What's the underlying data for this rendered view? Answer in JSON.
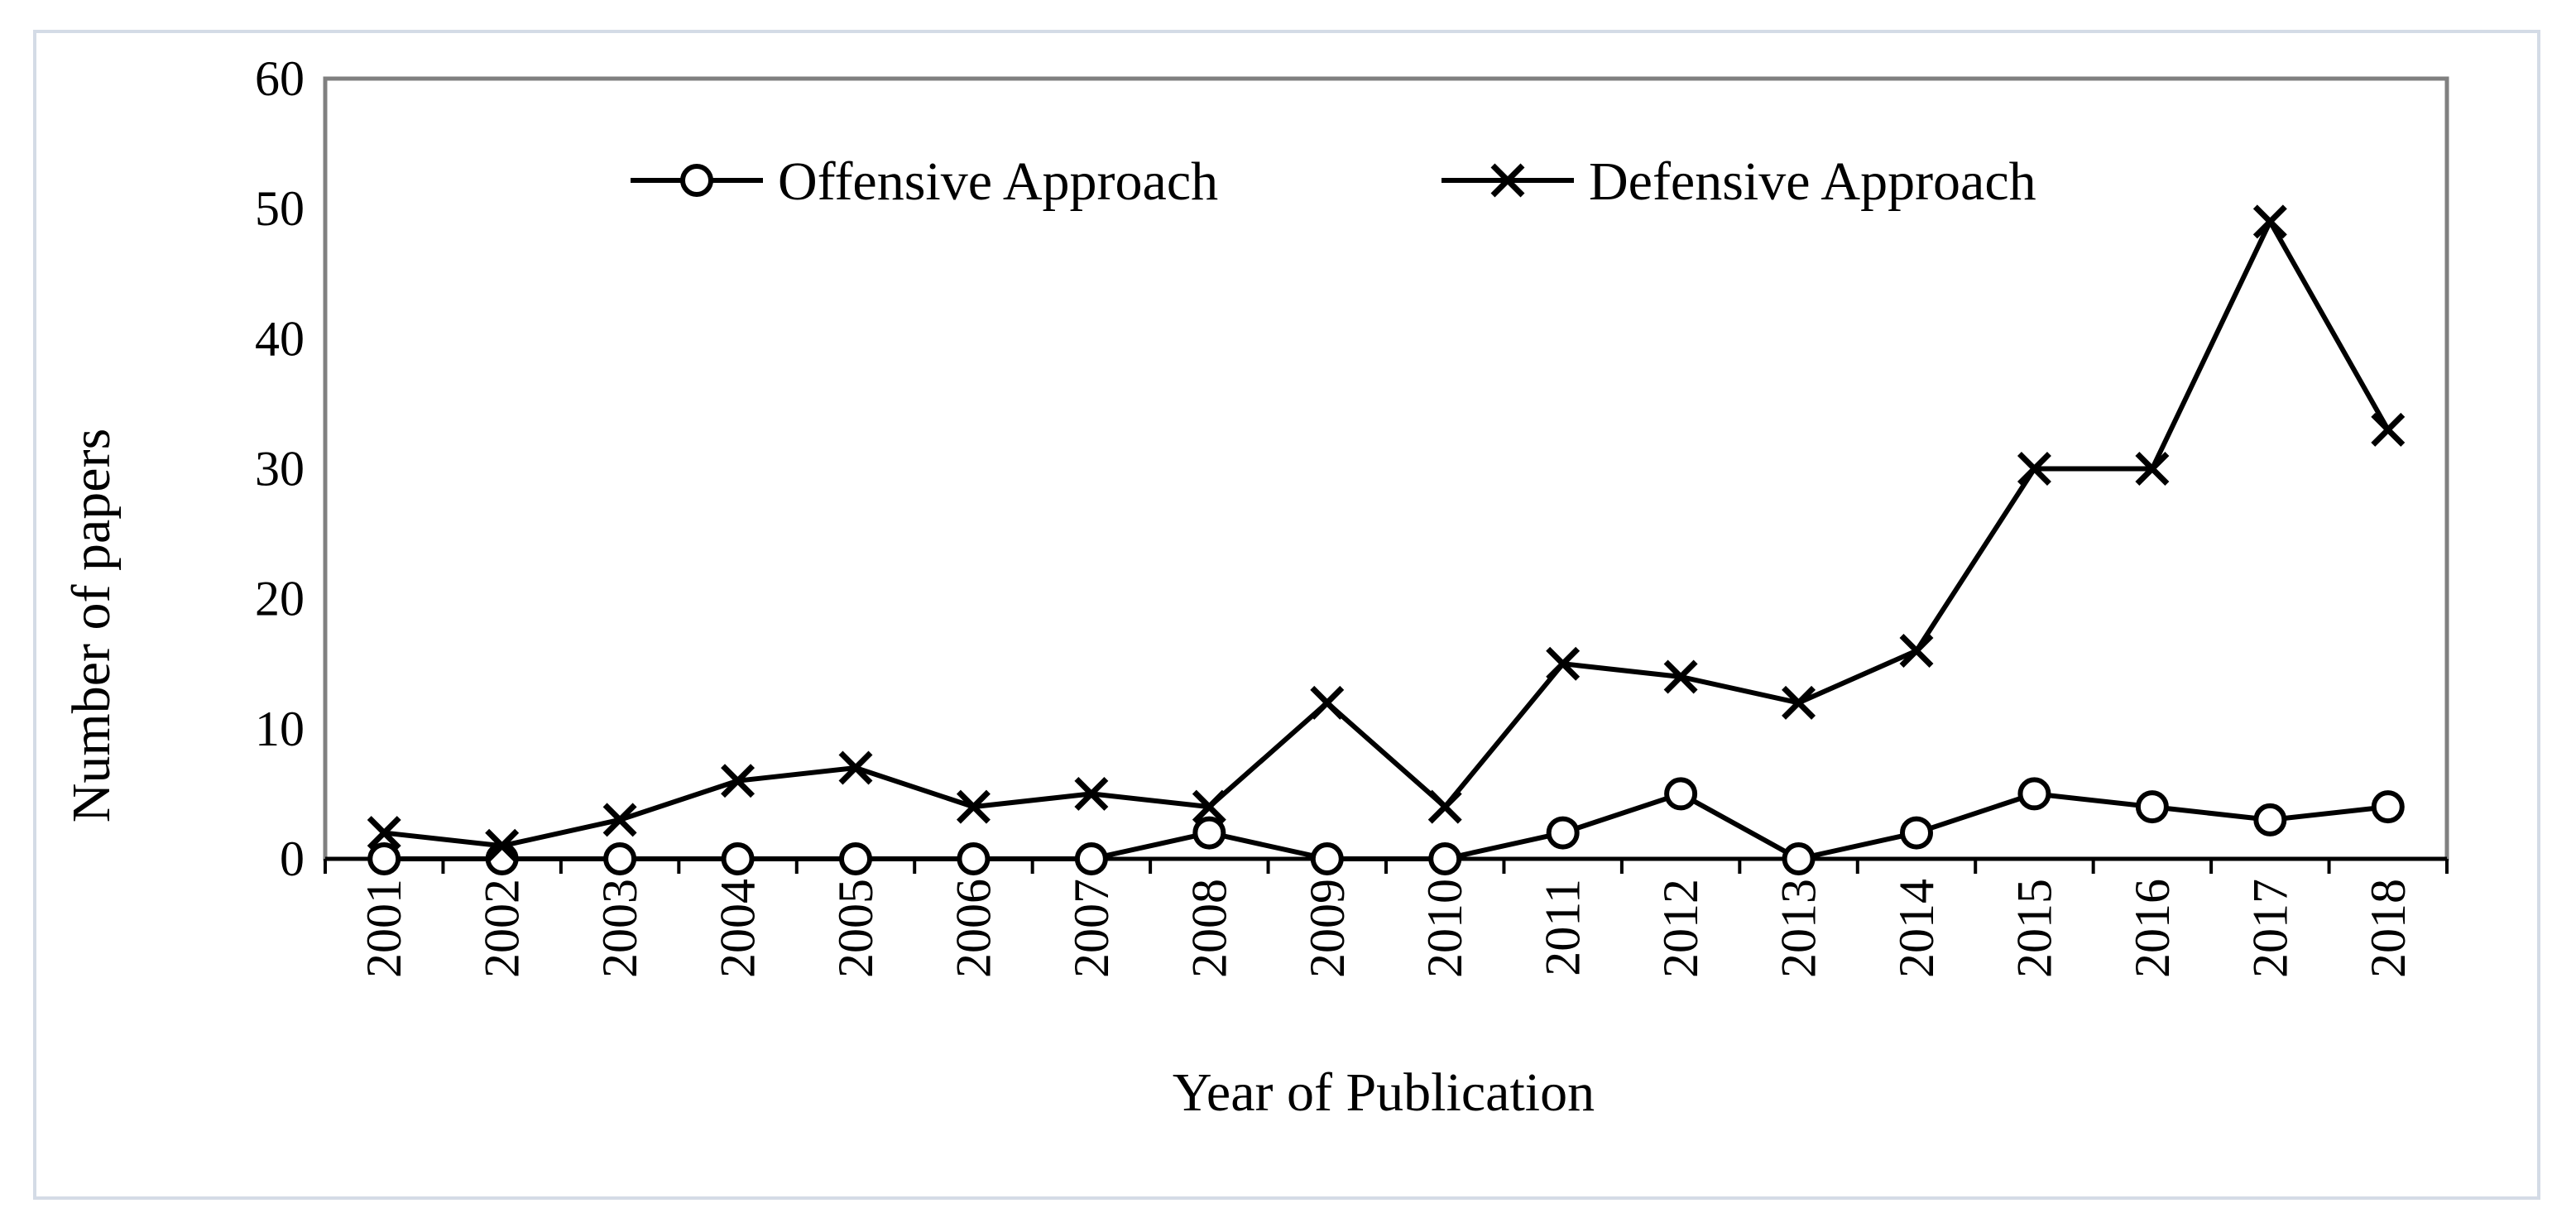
{
  "chart_data": {
    "type": "line",
    "title": "",
    "xlabel": "Year of Publication",
    "ylabel": "Number of papers",
    "categories": [
      "2001",
      "2002",
      "2003",
      "2004",
      "2005",
      "2006",
      "2007",
      "2008",
      "2009",
      "2010",
      "2011",
      "2012",
      "2013",
      "2014",
      "2015",
      "2016",
      "2017",
      "2018"
    ],
    "yticks": [
      "0",
      "10",
      "20",
      "30",
      "40",
      "50",
      "60"
    ],
    "ylim": [
      0,
      60
    ],
    "grid": false,
    "legend_position": "top",
    "series": [
      {
        "name": "Offensive Approach",
        "marker": "circle",
        "values": [
          0,
          0,
          0,
          0,
          0,
          0,
          0,
          2,
          0,
          0,
          2,
          5,
          0,
          2,
          5,
          4,
          3,
          4
        ]
      },
      {
        "name": "Defensive Approach",
        "marker": "x",
        "values": [
          2,
          1,
          3,
          6,
          7,
          4,
          5,
          4,
          12,
          4,
          15,
          14,
          12,
          16,
          30,
          30,
          49,
          33
        ]
      }
    ],
    "colors": {
      "line": "#000000",
      "axis_box": "#808080"
    }
  }
}
